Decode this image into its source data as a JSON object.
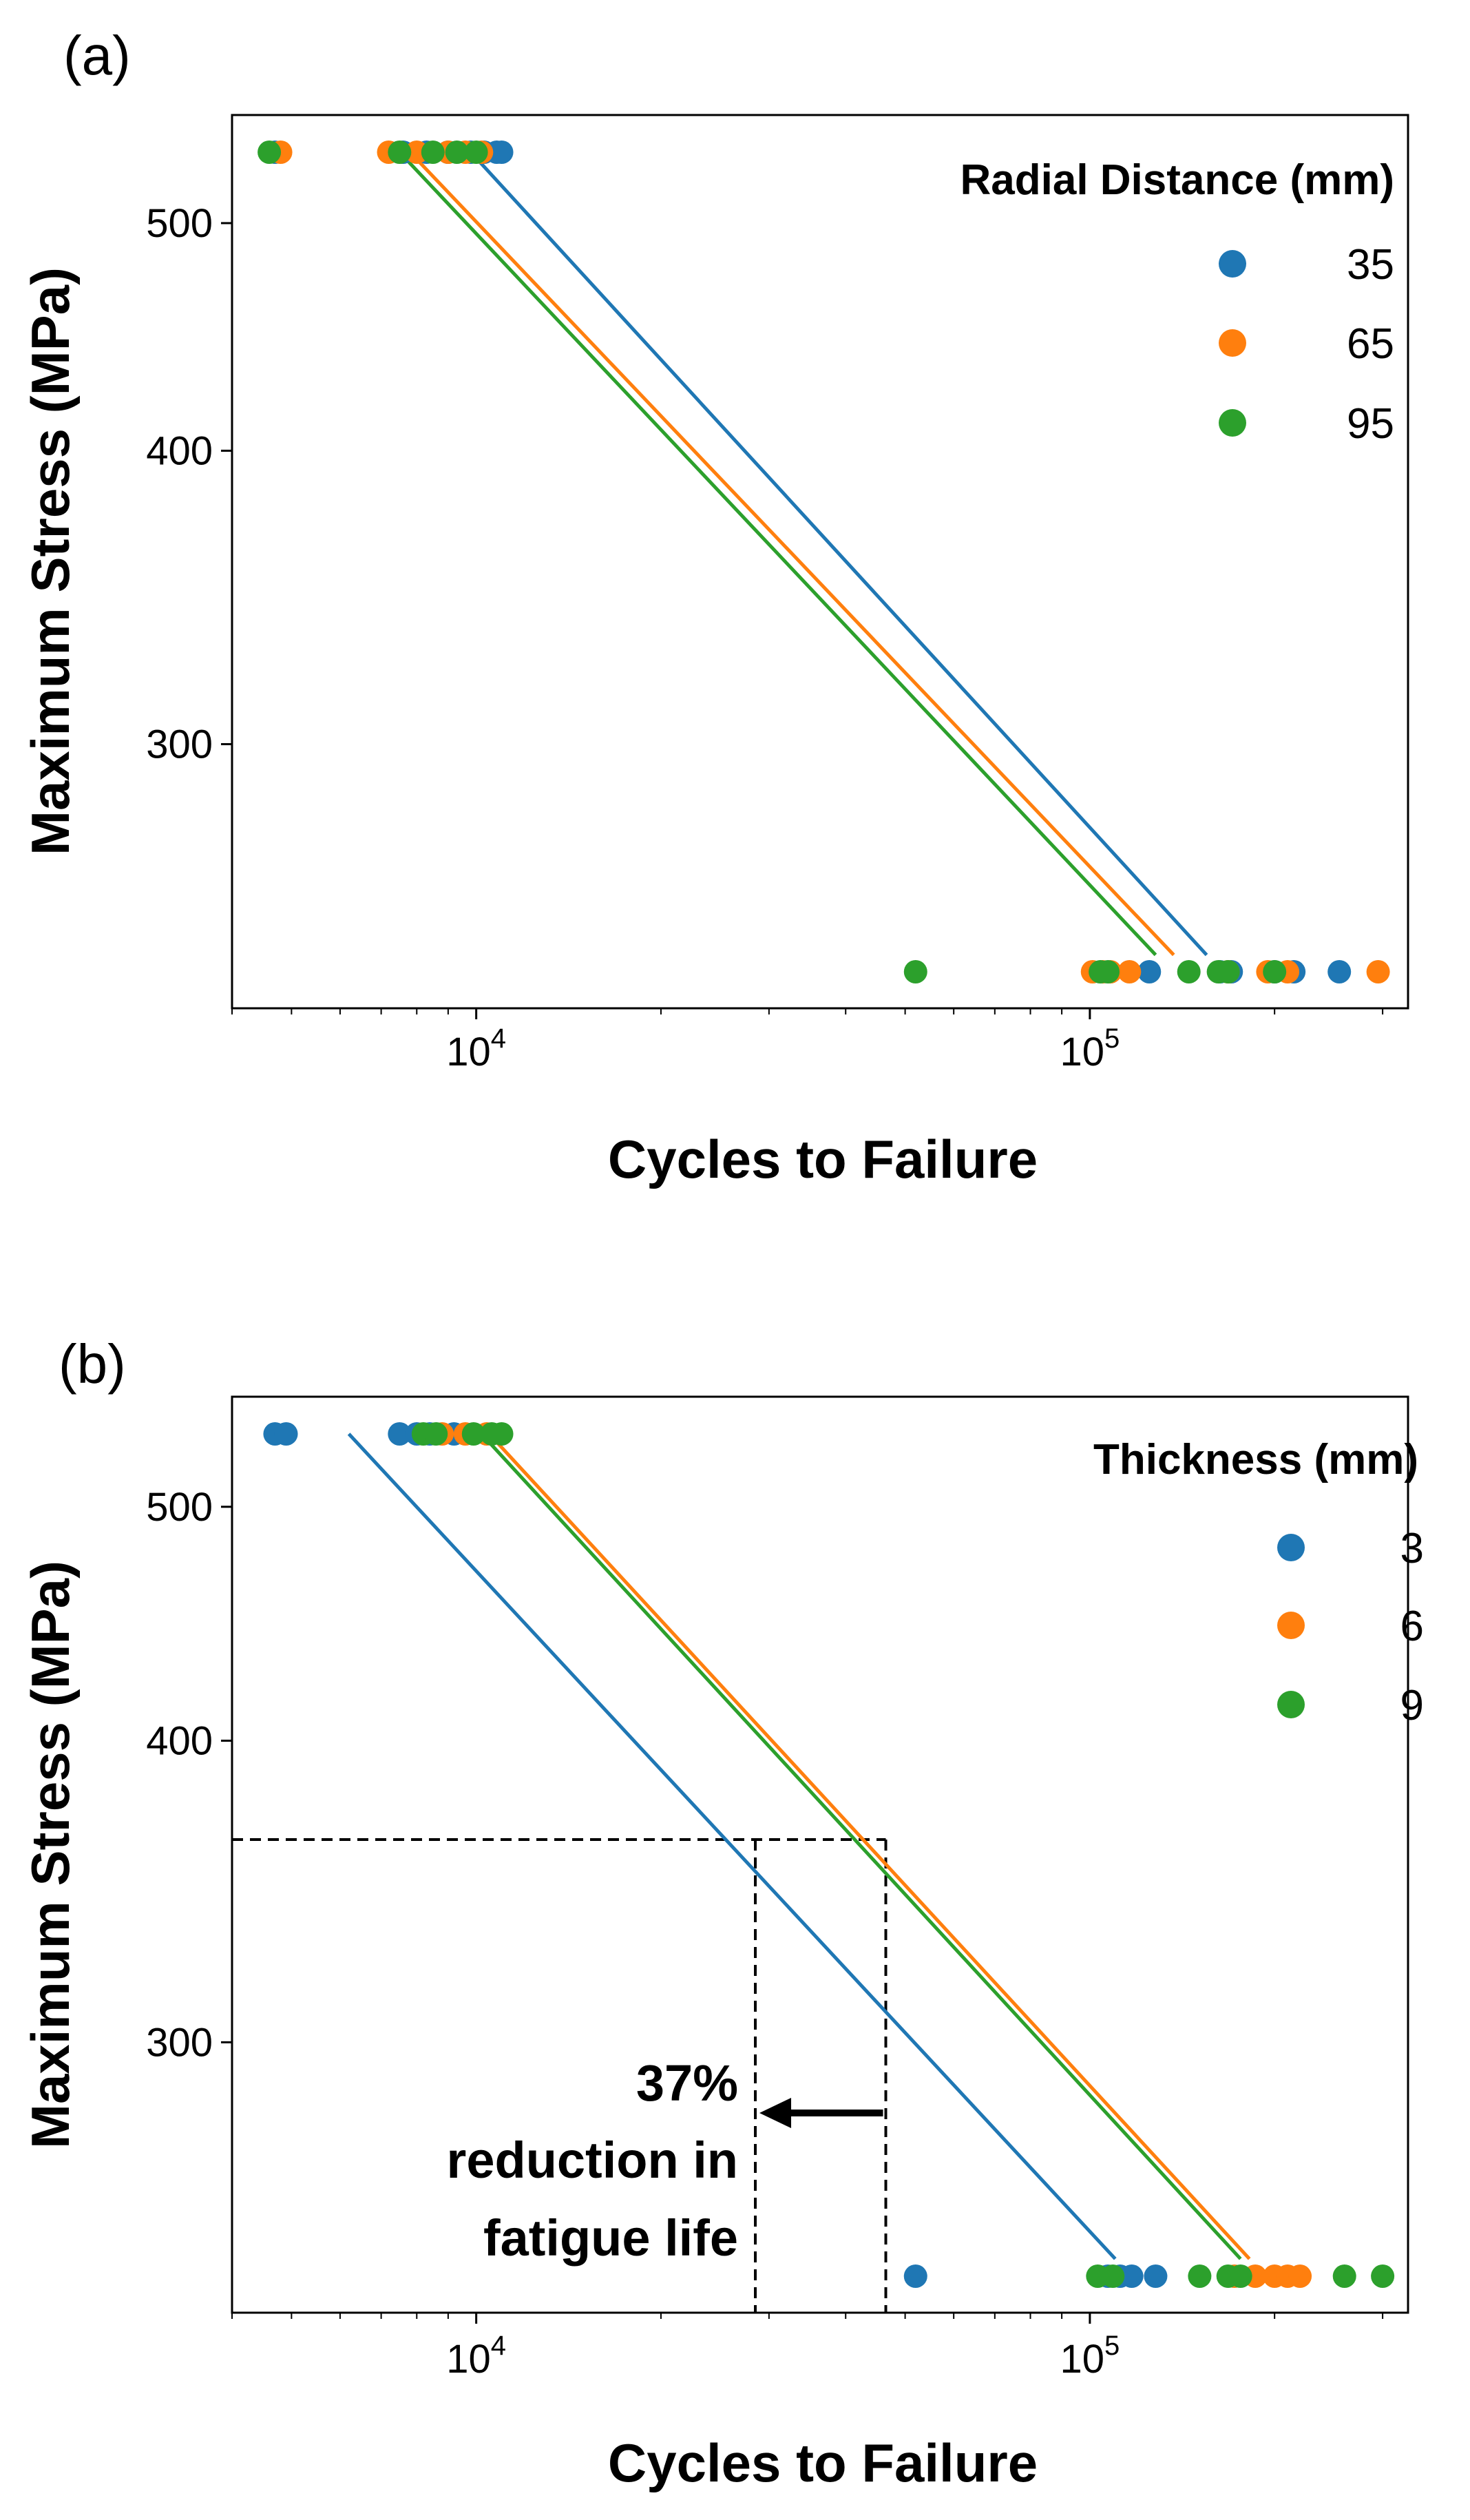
{
  "colors": {
    "blue": "#1f77b4",
    "orange": "#ff7f0e",
    "green": "#2ca02c",
    "axis": "#000000"
  },
  "chart_data": [
    {
      "type": "scatter",
      "panel_label": "(a)",
      "xscale": "log",
      "xlim": [
        4000,
        330000
      ],
      "ylim": [
        230,
        545
      ],
      "xticks": [
        {
          "value": 10000,
          "base": "10",
          "exp": "4"
        },
        {
          "value": 100000,
          "base": "10",
          "exp": "5"
        }
      ],
      "yticks": [
        {
          "value": 500,
          "label": "500"
        },
        {
          "value": 400,
          "label": "400"
        },
        {
          "value": 300,
          "label": "300"
        }
      ],
      "xlabel": "Cycles to Failure",
      "ylabel": "Maximum Stress (MPa)",
      "legend": {
        "title": "Radial Distance (mm)",
        "location": "upper right"
      },
      "series": [
        {
          "name": "35",
          "color": "#1f77b4",
          "points": [
            [
              4700,
              536
            ],
            [
              7600,
              536
            ],
            [
              8300,
              536
            ],
            [
              9000,
              536
            ],
            [
              9800,
              536
            ],
            [
              10300,
              536
            ],
            [
              10800,
              536
            ],
            [
              11000,
              536
            ],
            [
              125000,
              240
            ],
            [
              163000,
              240
            ],
            [
              170000,
              240
            ],
            [
              200000,
              240
            ],
            [
              215000,
              240
            ],
            [
              255000,
              240
            ]
          ],
          "fit": [
            [
              9800,
              536
            ],
            [
              155000,
              244
            ]
          ]
        },
        {
          "name": "65",
          "color": "#ff7f0e",
          "points": [
            [
              4800,
              536
            ],
            [
              7200,
              536
            ],
            [
              8000,
              536
            ],
            [
              9000,
              536
            ],
            [
              9600,
              536
            ],
            [
              10200,
              536
            ],
            [
              101000,
              240
            ],
            [
              105000,
              240
            ],
            [
              108000,
              240
            ],
            [
              116000,
              240
            ],
            [
              168000,
              240
            ],
            [
              195000,
              240
            ],
            [
              210000,
              240
            ],
            [
              295000,
              240
            ]
          ],
          "fit": [
            [
              7800,
              536
            ],
            [
              137000,
              244
            ]
          ]
        },
        {
          "name": "95",
          "color": "#2ca02c",
          "points": [
            [
              4600,
              536
            ],
            [
              7500,
              536
            ],
            [
              8500,
              536
            ],
            [
              9300,
              536
            ],
            [
              10000,
              536
            ],
            [
              52000,
              240
            ],
            [
              104000,
              240
            ],
            [
              107000,
              240
            ],
            [
              145000,
              240
            ],
            [
              162000,
              240
            ],
            [
              168000,
              240
            ],
            [
              200000,
              240
            ]
          ],
          "fit": [
            [
              7500,
              536
            ],
            [
              128000,
              244
            ]
          ]
        }
      ]
    },
    {
      "type": "scatter",
      "panel_label": "(b)",
      "xscale": "log",
      "xlim": [
        4000,
        330000
      ],
      "ylim": [
        230,
        545
      ],
      "xticks": [
        {
          "value": 10000,
          "base": "10",
          "exp": "4"
        },
        {
          "value": 100000,
          "base": "10",
          "exp": "5"
        }
      ],
      "yticks": [
        {
          "value": 500,
          "label": "500"
        },
        {
          "value": 400,
          "label": "400"
        },
        {
          "value": 300,
          "label": "300"
        }
      ],
      "xlabel": "Cycles to Failure",
      "ylabel": "Maximum Stress (MPa)",
      "legend": {
        "title": "Thickness (mm)",
        "location": "upper right"
      },
      "series": [
        {
          "name": "3",
          "color": "#1f77b4",
          "points": [
            [
              4700,
              536
            ],
            [
              4900,
              536
            ],
            [
              7500,
              536
            ],
            [
              8000,
              536
            ],
            [
              8400,
              536
            ],
            [
              9200,
              536
            ],
            [
              52000,
              240
            ],
            [
              107000,
              240
            ],
            [
              112000,
              240
            ],
            [
              117000,
              240
            ],
            [
              128000,
              240
            ]
          ],
          "fit": [
            [
              6200,
              536
            ],
            [
              110000,
              244
            ]
          ]
        },
        {
          "name": "6",
          "color": "#ff7f0e",
          "points": [
            [
              8800,
              536
            ],
            [
              9600,
              536
            ],
            [
              10400,
              536
            ],
            [
              172000,
              240
            ],
            [
              186000,
              240
            ],
            [
              200000,
              240
            ],
            [
              210000,
              240
            ],
            [
              220000,
              240
            ]
          ],
          "fit": [
            [
              10500,
              536
            ],
            [
              182000,
              244
            ]
          ]
        },
        {
          "name": "9",
          "color": "#2ca02c",
          "points": [
            [
              8200,
              536
            ],
            [
              8600,
              536
            ],
            [
              9900,
              536
            ],
            [
              10600,
              536
            ],
            [
              11000,
              536
            ],
            [
              103000,
              240
            ],
            [
              109000,
              240
            ],
            [
              151000,
              240
            ],
            [
              168000,
              240
            ],
            [
              176000,
              240
            ],
            [
              260000,
              240
            ],
            [
              300000,
              240
            ]
          ],
          "fit": [
            [
              10200,
              536
            ],
            [
              176000,
              244
            ]
          ]
        }
      ],
      "reference_lines": {
        "stress": 364,
        "cycles_before": 46500,
        "cycles_after": 28500
      },
      "annotation": {
        "lines": [
          "37%",
          "reduction in",
          "fatigue life"
        ]
      }
    }
  ]
}
